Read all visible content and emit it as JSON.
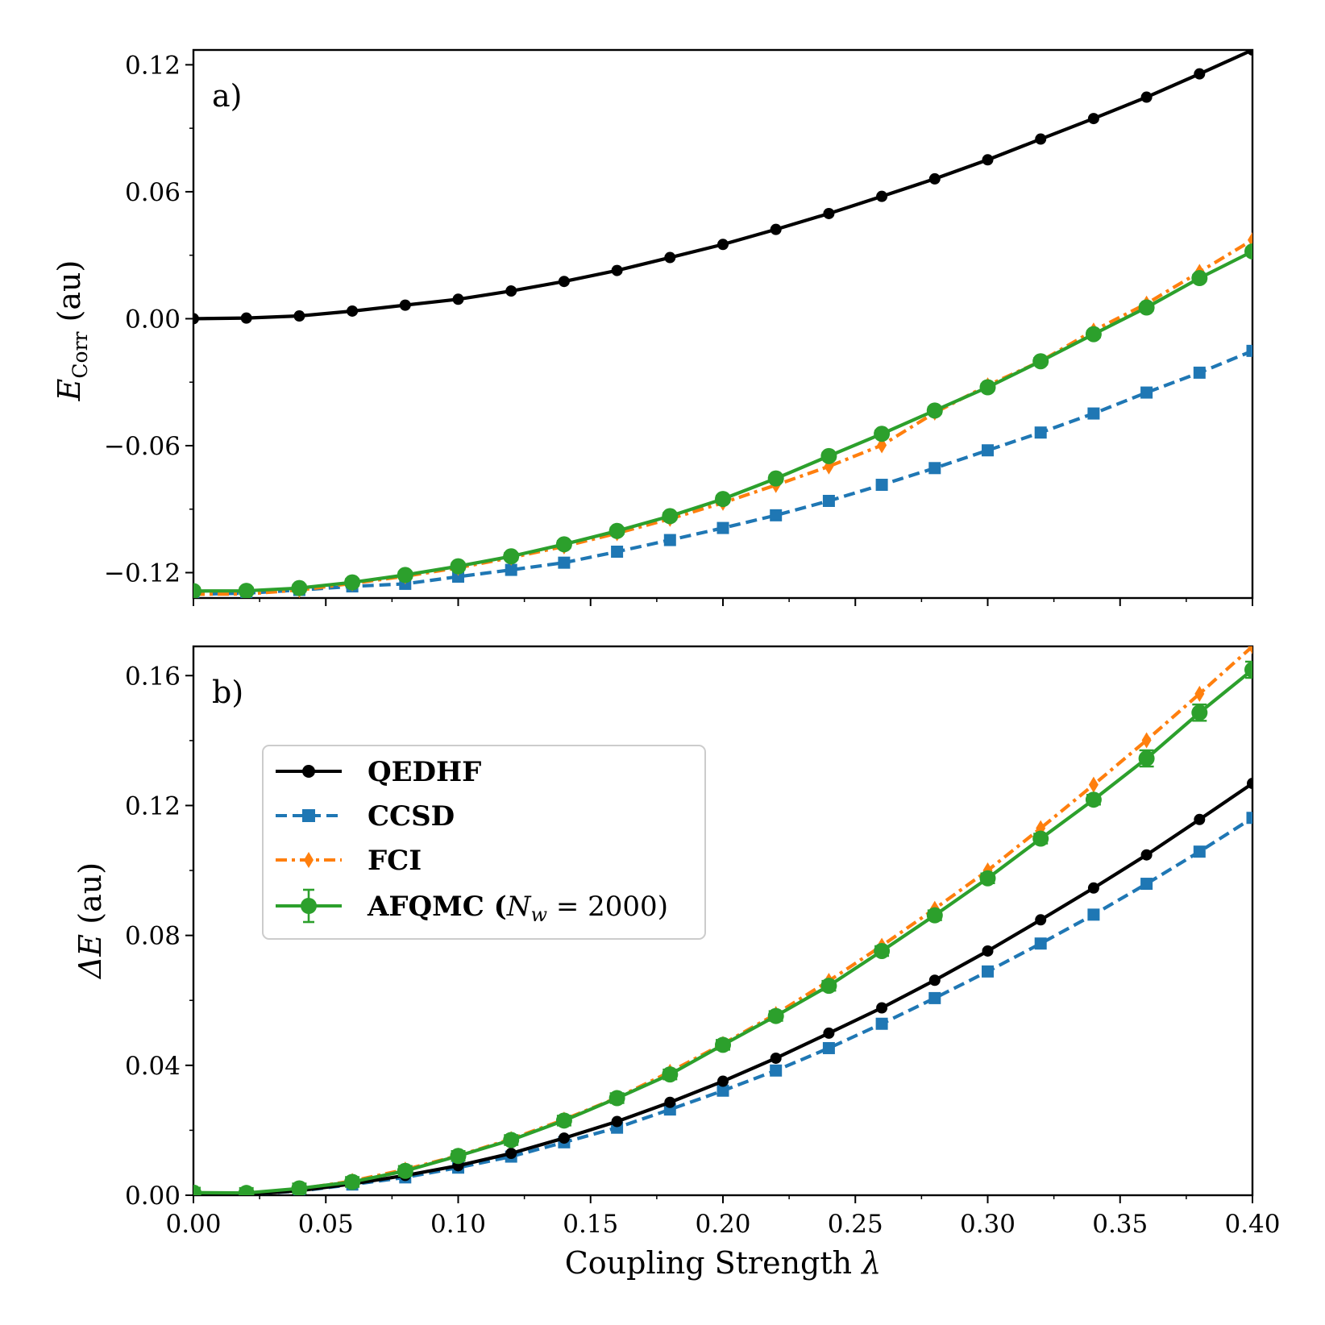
{
  "chart_data": [
    {
      "panel": "a)",
      "type": "line",
      "ylabel_main": "E",
      "ylabel_sub": "Corr",
      "ylabel_unit": "(au)",
      "xlim": [
        0.0,
        0.4
      ],
      "ylim": [
        -0.132,
        0.127
      ],
      "yticks": [
        -0.12,
        -0.06,
        0.0,
        0.06,
        0.12
      ],
      "ytick_labels": [
        "−0.12",
        "−0.06",
        "0.00",
        "0.06",
        "0.12"
      ],
      "x": [
        0.0,
        0.02,
        0.04,
        0.06,
        0.08,
        0.1,
        0.12,
        0.14,
        0.16,
        0.18,
        0.2,
        0.22,
        0.24,
        0.26,
        0.28,
        0.3,
        0.32,
        0.34,
        0.36,
        0.38,
        0.4
      ],
      "series": [
        {
          "name": "QEDHF",
          "color": "#000000",
          "marker": "circle",
          "dash": "solid",
          "values": [
            0.0,
            0.0003,
            0.0013,
            0.0036,
            0.0064,
            0.0092,
            0.0131,
            0.0176,
            0.0228,
            0.0289,
            0.0351,
            0.0422,
            0.0497,
            0.0578,
            0.0661,
            0.0751,
            0.0849,
            0.0946,
            0.1047,
            0.1157,
            0.127
          ]
        },
        {
          "name": "CCSD",
          "color": "#1f77b4",
          "marker": "square",
          "dash": "dashed",
          "values": [
            -0.1302,
            -0.1297,
            -0.1282,
            -0.1265,
            -0.1253,
            -0.1219,
            -0.1187,
            -0.1153,
            -0.1101,
            -0.1046,
            -0.0989,
            -0.0929,
            -0.0861,
            -0.0785,
            -0.0706,
            -0.0622,
            -0.0538,
            -0.0448,
            -0.0349,
            -0.0255,
            -0.0152
          ]
        },
        {
          "name": "FCI",
          "color": "#ff7f0e",
          "marker": "diamond",
          "dash": "dashdot",
          "values": [
            -0.1302,
            -0.1301,
            -0.1282,
            -0.1251,
            -0.1217,
            -0.1177,
            -0.1129,
            -0.1076,
            -0.1014,
            -0.0946,
            -0.087,
            -0.0786,
            -0.0698,
            -0.0598,
            -0.0444,
            -0.0315,
            -0.0201,
            -0.0056,
            0.0071,
            0.0221,
            0.0372
          ]
        },
        {
          "name": "AFQMC",
          "color": "#2ca02c",
          "marker": "circle",
          "dash": "solid",
          "errorbars": true,
          "values": [
            -0.1287,
            -0.1286,
            -0.1273,
            -0.1246,
            -0.1211,
            -0.117,
            -0.1123,
            -0.1066,
            -0.1003,
            -0.0933,
            -0.0852,
            -0.0755,
            -0.0649,
            -0.0544,
            -0.0434,
            -0.0324,
            -0.0201,
            -0.0073,
            0.0053,
            0.0192,
            0.0318
          ],
          "errors": [
            0.0015,
            0.0015,
            0.0015,
            0.0015,
            0.0015,
            0.0015,
            0.0015,
            0.0015,
            0.0015,
            0.0015,
            0.0015,
            0.0015,
            0.0015,
            0.0015,
            0.0015,
            0.0015,
            0.0015,
            0.0015,
            0.0015,
            0.0015,
            0.0015
          ]
        }
      ]
    },
    {
      "panel": "b)",
      "type": "line",
      "ylabel_main": "ΔE",
      "ylabel_unit": "(au)",
      "xlabel": "Coupling Strength",
      "xlabel_symbol": "λ",
      "xlim": [
        0.0,
        0.4
      ],
      "ylim": [
        0.0,
        0.169
      ],
      "xticks": [
        0.0,
        0.05,
        0.1,
        0.15,
        0.2,
        0.25,
        0.3,
        0.35,
        0.4
      ],
      "xtick_labels": [
        "0.00",
        "0.05",
        "0.10",
        "0.15",
        "0.20",
        "0.25",
        "0.30",
        "0.35",
        "0.40"
      ],
      "yticks": [
        0.0,
        0.04,
        0.08,
        0.12,
        0.16
      ],
      "ytick_labels": [
        "0.00",
        "0.04",
        "0.08",
        "0.12",
        "0.16"
      ],
      "x": [
        0.0,
        0.02,
        0.04,
        0.06,
        0.08,
        0.1,
        0.12,
        0.14,
        0.16,
        0.18,
        0.2,
        0.22,
        0.24,
        0.26,
        0.28,
        0.3,
        0.32,
        0.34,
        0.36,
        0.38,
        0.4
      ],
      "series": [
        {
          "name": "QEDHF",
          "color": "#000000",
          "marker": "circle",
          "dash": "solid",
          "values": [
            0.0,
            0.0003,
            0.0014,
            0.0035,
            0.0061,
            0.0091,
            0.0129,
            0.0176,
            0.0227,
            0.0286,
            0.0351,
            0.0422,
            0.0499,
            0.0577,
            0.0662,
            0.0752,
            0.0848,
            0.0946,
            0.1048,
            0.1157,
            0.1268
          ]
        },
        {
          "name": "CCSD",
          "color": "#1f77b4",
          "marker": "square",
          "dash": "dashed",
          "values": [
            0.0,
            0.0003,
            0.0013,
            0.0033,
            0.0055,
            0.0085,
            0.0119,
            0.0163,
            0.0208,
            0.0264,
            0.0322,
            0.0384,
            0.0453,
            0.0528,
            0.0607,
            0.0689,
            0.0775,
            0.0864,
            0.0959,
            0.1058,
            0.1162
          ]
        },
        {
          "name": "FCI",
          "color": "#ff7f0e",
          "marker": "diamond",
          "dash": "dashdot",
          "values": [
            0.0,
            0.0005,
            0.0019,
            0.0044,
            0.0079,
            0.0122,
            0.0173,
            0.0233,
            0.03,
            0.038,
            0.0466,
            0.0558,
            0.066,
            0.0768,
            0.0882,
            0.1,
            0.113,
            0.1264,
            0.1401,
            0.1544,
            0.169
          ]
        },
        {
          "name": "AFQMC",
          "color": "#2ca02c",
          "marker": "circle",
          "dash": "solid",
          "errorbars": true,
          "values": [
            0.0008,
            0.0007,
            0.0021,
            0.0041,
            0.0075,
            0.0121,
            0.017,
            0.023,
            0.0299,
            0.0372,
            0.0463,
            0.0552,
            0.0645,
            0.0752,
            0.0862,
            0.0976,
            0.1098,
            0.1218,
            0.1345,
            0.1486,
            0.1618
          ],
          "errors": [
            0.0015,
            0.0015,
            0.0015,
            0.0015,
            0.0015,
            0.0015,
            0.0015,
            0.0015,
            0.0015,
            0.0015,
            0.0015,
            0.0015,
            0.0015,
            0.0015,
            0.0015,
            0.0015,
            0.0015,
            0.0015,
            0.0025,
            0.0025,
            0.0025
          ]
        }
      ],
      "legend": {
        "placement": "upper-left",
        "entries": [
          "QEDHF",
          "CCSD",
          "FCI",
          "AFQMC (N_w = 2000)"
        ],
        "afqmc_label": "AFQMC (",
        "afqmc_nw_symbol": "N",
        "afqmc_nw_sub": "w",
        "afqmc_nw_value": " = 2000)"
      }
    }
  ]
}
